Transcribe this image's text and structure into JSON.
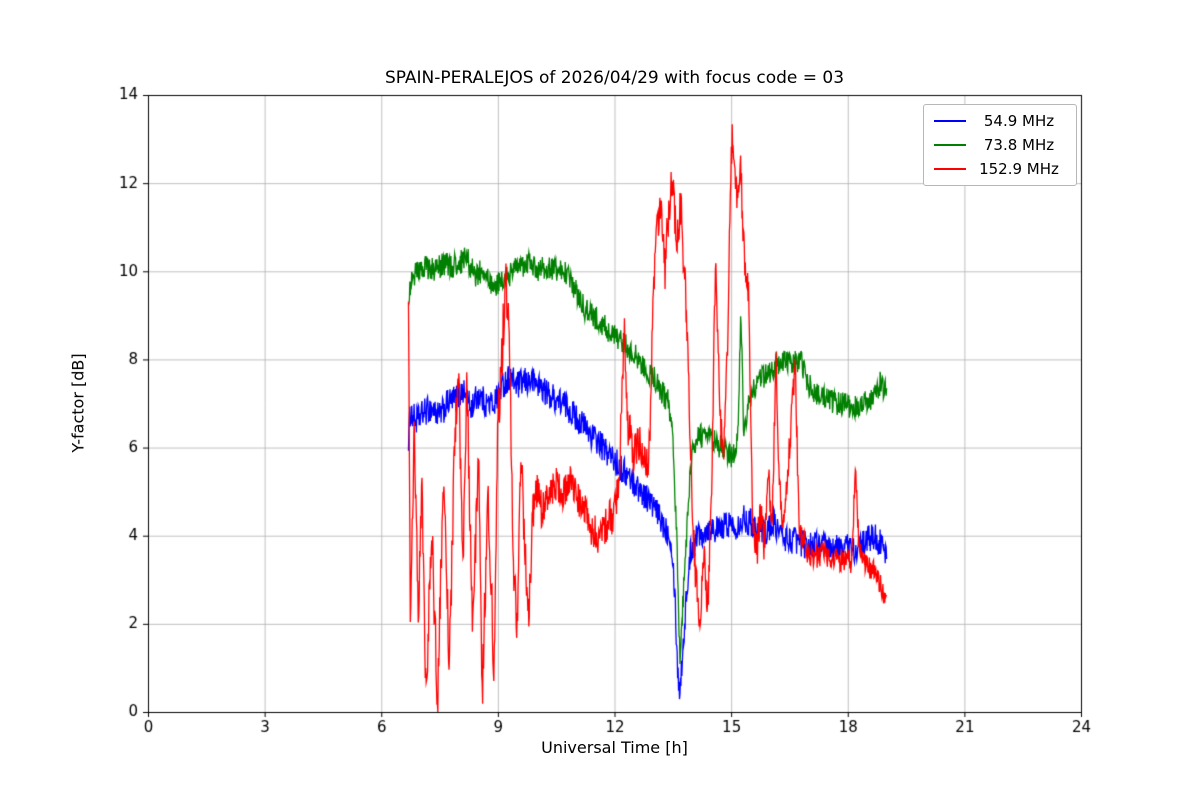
{
  "chart_data": {
    "type": "line",
    "title": "SPAIN-PERALEJOS of 2026/04/29 with focus code = 03",
    "xlabel": "Universal Time [h]",
    "ylabel": "Y-factor [dB]",
    "xlim": [
      0,
      24
    ],
    "ylim": [
      0,
      14
    ],
    "x_ticks": [
      0,
      3,
      6,
      9,
      12,
      15,
      18,
      21,
      24
    ],
    "y_ticks": [
      0,
      2,
      4,
      6,
      8,
      10,
      12,
      14
    ],
    "grid": true,
    "legend_position": "upper right",
    "series": [
      {
        "name": "54.9 MHz",
        "color": "#0000ff",
        "noise_amplitude": 0.32,
        "points": [
          [
            6.7,
            6.2
          ],
          [
            6.75,
            6.8
          ],
          [
            6.9,
            6.6
          ],
          [
            7.1,
            6.8
          ],
          [
            7.3,
            6.9
          ],
          [
            7.5,
            6.7
          ],
          [
            7.7,
            7.0
          ],
          [
            7.9,
            7.1
          ],
          [
            8.1,
            7.3
          ],
          [
            8.3,
            6.9
          ],
          [
            8.5,
            7.2
          ],
          [
            8.7,
            7.0
          ],
          [
            8.9,
            7.0
          ],
          [
            9.1,
            7.4
          ],
          [
            9.3,
            7.6
          ],
          [
            9.5,
            7.4
          ],
          [
            9.7,
            7.5
          ],
          [
            9.9,
            7.5
          ],
          [
            10.1,
            7.4
          ],
          [
            10.3,
            7.2
          ],
          [
            10.5,
            7.1
          ],
          [
            10.7,
            7.0
          ],
          [
            10.9,
            6.8
          ],
          [
            11.1,
            6.6
          ],
          [
            11.3,
            6.4
          ],
          [
            11.5,
            6.2
          ],
          [
            11.7,
            6.0
          ],
          [
            11.9,
            5.8
          ],
          [
            12.1,
            5.6
          ],
          [
            12.3,
            5.4
          ],
          [
            12.5,
            5.2
          ],
          [
            12.7,
            5.0
          ],
          [
            12.9,
            4.8
          ],
          [
            13.1,
            4.5
          ],
          [
            13.3,
            4.2
          ],
          [
            13.45,
            4.0
          ],
          [
            13.55,
            2.8
          ],
          [
            13.62,
            1.0
          ],
          [
            13.68,
            0.45
          ],
          [
            13.75,
            1.3
          ],
          [
            13.85,
            2.6
          ],
          [
            13.95,
            3.6
          ],
          [
            14.1,
            4.0
          ],
          [
            14.3,
            4.1
          ],
          [
            14.5,
            4.2
          ],
          [
            14.7,
            4.1
          ],
          [
            14.9,
            4.3
          ],
          [
            15.1,
            4.2
          ],
          [
            15.3,
            4.4
          ],
          [
            15.5,
            4.3
          ],
          [
            15.7,
            4.2
          ],
          [
            15.9,
            4.1
          ],
          [
            16.1,
            4.3
          ],
          [
            16.3,
            4.0
          ],
          [
            16.5,
            3.9
          ],
          [
            16.7,
            3.9
          ],
          [
            16.9,
            3.8
          ],
          [
            17.1,
            3.8
          ],
          [
            17.3,
            3.8
          ],
          [
            17.5,
            3.7
          ],
          [
            17.7,
            3.7
          ],
          [
            17.9,
            3.8
          ],
          [
            18.1,
            3.7
          ],
          [
            18.3,
            3.7
          ],
          [
            18.5,
            3.9
          ],
          [
            18.7,
            4.0
          ],
          [
            18.85,
            3.8
          ],
          [
            19.0,
            3.5
          ]
        ]
      },
      {
        "name": "73.8 MHz",
        "color": "#008000",
        "noise_amplitude": 0.28,
        "points": [
          [
            6.7,
            9.4
          ],
          [
            6.8,
            9.9
          ],
          [
            7.0,
            10.0
          ],
          [
            7.2,
            10.1
          ],
          [
            7.4,
            10.0
          ],
          [
            7.6,
            10.2
          ],
          [
            7.8,
            10.1
          ],
          [
            8.0,
            10.2
          ],
          [
            8.2,
            10.3
          ],
          [
            8.4,
            9.9
          ],
          [
            8.6,
            10.0
          ],
          [
            8.8,
            9.7
          ],
          [
            9.0,
            9.7
          ],
          [
            9.2,
            9.8
          ],
          [
            9.4,
            10.0
          ],
          [
            9.6,
            10.1
          ],
          [
            9.8,
            10.2
          ],
          [
            10.0,
            10.0
          ],
          [
            10.2,
            10.1
          ],
          [
            10.4,
            10.0
          ],
          [
            10.6,
            10.1
          ],
          [
            10.8,
            9.9
          ],
          [
            11.0,
            9.6
          ],
          [
            11.2,
            9.2
          ],
          [
            11.4,
            9.0
          ],
          [
            11.6,
            8.9
          ],
          [
            11.8,
            8.7
          ],
          [
            12.0,
            8.5
          ],
          [
            12.2,
            8.4
          ],
          [
            12.4,
            8.2
          ],
          [
            12.6,
            8.0
          ],
          [
            12.8,
            7.8
          ],
          [
            13.0,
            7.6
          ],
          [
            13.2,
            7.3
          ],
          [
            13.4,
            7.0
          ],
          [
            13.5,
            6.2
          ],
          [
            13.6,
            4.0
          ],
          [
            13.68,
            1.2
          ],
          [
            13.78,
            2.8
          ],
          [
            13.9,
            4.8
          ],
          [
            14.0,
            6.0
          ],
          [
            14.2,
            6.3
          ],
          [
            14.4,
            6.2
          ],
          [
            14.6,
            6.1
          ],
          [
            14.8,
            6.0
          ],
          [
            15.0,
            5.8
          ],
          [
            15.1,
            6.0
          ],
          [
            15.18,
            6.3
          ],
          [
            15.25,
            9.3
          ],
          [
            15.32,
            6.4
          ],
          [
            15.45,
            7.0
          ],
          [
            15.6,
            7.4
          ],
          [
            15.8,
            7.6
          ],
          [
            16.0,
            7.7
          ],
          [
            16.2,
            7.9
          ],
          [
            16.4,
            8.0
          ],
          [
            16.6,
            7.9
          ],
          [
            16.8,
            8.0
          ],
          [
            16.95,
            7.5
          ],
          [
            17.1,
            7.3
          ],
          [
            17.3,
            7.2
          ],
          [
            17.5,
            7.1
          ],
          [
            17.7,
            7.0
          ],
          [
            17.9,
            7.0
          ],
          [
            18.1,
            6.9
          ],
          [
            18.3,
            7.0
          ],
          [
            18.5,
            7.0
          ],
          [
            18.7,
            7.2
          ],
          [
            18.85,
            7.5
          ],
          [
            19.0,
            7.2
          ]
        ]
      },
      {
        "name": "152.9 MHz",
        "color": "#ff0000",
        "noise_amplitude": [
          [
            6.7,
            0.3
          ],
          [
            7.0,
            0.6
          ],
          [
            9.4,
            0.6
          ],
          [
            9.9,
            0.45
          ],
          [
            11.0,
            0.4
          ],
          [
            12.9,
            0.5
          ],
          [
            15.5,
            0.45
          ],
          [
            17.0,
            0.3
          ],
          [
            19.0,
            0.25
          ]
        ],
        "points": [
          [
            6.7,
            9.3
          ],
          [
            6.75,
            2.0
          ],
          [
            6.85,
            6.5
          ],
          [
            6.95,
            2.2
          ],
          [
            7.05,
            5.0
          ],
          [
            7.15,
            0.5
          ],
          [
            7.3,
            4.0
          ],
          [
            7.45,
            0.3
          ],
          [
            7.6,
            5.5
          ],
          [
            7.75,
            1.0
          ],
          [
            7.9,
            6.5
          ],
          [
            8.0,
            7.5
          ],
          [
            8.1,
            3.0
          ],
          [
            8.2,
            7.8
          ],
          [
            8.35,
            1.5
          ],
          [
            8.5,
            6.0
          ],
          [
            8.6,
            0.5
          ],
          [
            8.75,
            5.0
          ],
          [
            8.9,
            1.0
          ],
          [
            9.0,
            6.5
          ],
          [
            9.1,
            8.0
          ],
          [
            9.2,
            9.9
          ],
          [
            9.3,
            8.5
          ],
          [
            9.4,
            3.0
          ],
          [
            9.5,
            2.0
          ],
          [
            9.6,
            6.0
          ],
          [
            9.7,
            3.5
          ],
          [
            9.8,
            2.2
          ],
          [
            9.9,
            4.5
          ],
          [
            10.0,
            5.0
          ],
          [
            10.1,
            4.6
          ],
          [
            10.3,
            4.8
          ],
          [
            10.5,
            5.2
          ],
          [
            10.7,
            4.9
          ],
          [
            10.9,
            5.4
          ],
          [
            11.0,
            5.0
          ],
          [
            11.2,
            4.6
          ],
          [
            11.4,
            4.2
          ],
          [
            11.6,
            4.0
          ],
          [
            11.8,
            4.3
          ],
          [
            12.0,
            4.5
          ],
          [
            12.1,
            5.0
          ],
          [
            12.25,
            8.7
          ],
          [
            12.35,
            6.5
          ],
          [
            12.5,
            5.8
          ],
          [
            12.65,
            6.2
          ],
          [
            12.8,
            5.5
          ],
          [
            12.9,
            6.0
          ],
          [
            13.0,
            9.5
          ],
          [
            13.1,
            11.0
          ],
          [
            13.2,
            11.7
          ],
          [
            13.3,
            10.0
          ],
          [
            13.4,
            11.5
          ],
          [
            13.5,
            12.1
          ],
          [
            13.6,
            10.5
          ],
          [
            13.7,
            11.5
          ],
          [
            13.8,
            10.0
          ],
          [
            13.9,
            8.0
          ],
          [
            14.0,
            4.5
          ],
          [
            14.1,
            3.0
          ],
          [
            14.2,
            2.0
          ],
          [
            14.3,
            3.5
          ],
          [
            14.4,
            2.5
          ],
          [
            14.5,
            5.0
          ],
          [
            14.6,
            10.4
          ],
          [
            14.7,
            7.0
          ],
          [
            14.8,
            5.5
          ],
          [
            14.9,
            8.0
          ],
          [
            15.0,
            12.5
          ],
          [
            15.05,
            13.2
          ],
          [
            15.15,
            11.5
          ],
          [
            15.25,
            12.3
          ],
          [
            15.35,
            10.0
          ],
          [
            15.45,
            9.5
          ],
          [
            15.55,
            4.5
          ],
          [
            15.65,
            3.5
          ],
          [
            15.75,
            4.5
          ],
          [
            15.85,
            3.8
          ],
          [
            15.95,
            5.5
          ],
          [
            16.05,
            4.0
          ],
          [
            16.15,
            8.0
          ],
          [
            16.25,
            5.0
          ],
          [
            16.35,
            4.2
          ],
          [
            16.5,
            6.0
          ],
          [
            16.65,
            8.0
          ],
          [
            16.75,
            4.0
          ],
          [
            16.9,
            3.8
          ],
          [
            17.0,
            3.6
          ],
          [
            17.2,
            3.5
          ],
          [
            17.4,
            3.6
          ],
          [
            17.6,
            3.5
          ],
          [
            17.8,
            3.4
          ],
          [
            18.0,
            3.5
          ],
          [
            18.1,
            3.4
          ],
          [
            18.2,
            5.5
          ],
          [
            18.3,
            3.6
          ],
          [
            18.5,
            3.3
          ],
          [
            18.7,
            3.2
          ],
          [
            18.85,
            2.9
          ],
          [
            19.0,
            2.5
          ]
        ]
      }
    ]
  }
}
